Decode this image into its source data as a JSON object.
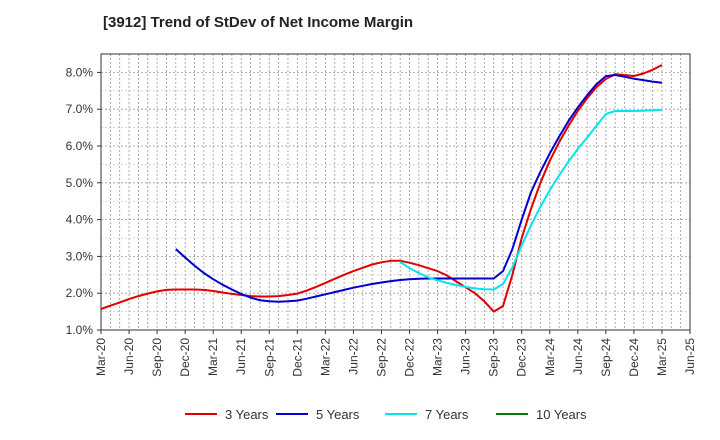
{
  "chart_data": {
    "type": "line",
    "title": "[3912]  Trend of StDev of Net Income Margin",
    "xlabel": "",
    "ylabel": "",
    "x_ticks": [
      "Mar-20",
      "Jun-20",
      "Sep-20",
      "Dec-20",
      "Mar-21",
      "Jun-21",
      "Sep-21",
      "Dec-21",
      "Mar-22",
      "Jun-22",
      "Sep-22",
      "Dec-22",
      "Mar-23",
      "Jun-23",
      "Sep-23",
      "Dec-23",
      "Mar-24",
      "Jun-24",
      "Sep-24",
      "Dec-24",
      "Mar-25",
      "Jun-25"
    ],
    "y_ticks": [
      "1.0%",
      "2.0%",
      "3.0%",
      "4.0%",
      "5.0%",
      "6.0%",
      "7.0%",
      "8.0%"
    ],
    "ylim": [
      1.0,
      8.5
    ],
    "grid": true,
    "legend_position": "bottom",
    "series": [
      {
        "name": "3 Years",
        "color": "#e00000",
        "points": [
          [
            "Mar-20",
            1.57
          ],
          [
            "Apr-20",
            1.66
          ],
          [
            "May-20",
            1.75
          ],
          [
            "Jun-20",
            1.84
          ],
          [
            "Jul-20",
            1.92
          ],
          [
            "Aug-20",
            1.99
          ],
          [
            "Sep-20",
            2.05
          ],
          [
            "Oct-20",
            2.09
          ],
          [
            "Nov-20",
            2.1
          ],
          [
            "Dec-20",
            2.1
          ],
          [
            "Jan-21",
            2.1
          ],
          [
            "Feb-21",
            2.09
          ],
          [
            "Mar-21",
            2.06
          ],
          [
            "Apr-21",
            2.02
          ],
          [
            "May-21",
            1.98
          ],
          [
            "Jun-21",
            1.95
          ],
          [
            "Jul-21",
            1.92
          ],
          [
            "Aug-21",
            1.91
          ],
          [
            "Sep-21",
            1.91
          ],
          [
            "Oct-21",
            1.92
          ],
          [
            "Nov-21",
            1.95
          ],
          [
            "Dec-21",
            1.99
          ],
          [
            "Jan-22",
            2.07
          ],
          [
            "Feb-22",
            2.17
          ],
          [
            "Mar-22",
            2.28
          ],
          [
            "Apr-22",
            2.39
          ],
          [
            "May-22",
            2.5
          ],
          [
            "Jun-22",
            2.6
          ],
          [
            "Jul-22",
            2.69
          ],
          [
            "Aug-22",
            2.78
          ],
          [
            "Sep-22",
            2.84
          ],
          [
            "Oct-22",
            2.88
          ],
          [
            "Nov-22",
            2.88
          ],
          [
            "Dec-22",
            2.83
          ],
          [
            "Jan-23",
            2.76
          ],
          [
            "Feb-23",
            2.68
          ],
          [
            "Mar-23",
            2.6
          ],
          [
            "Apr-23",
            2.48
          ],
          [
            "May-23",
            2.32
          ],
          [
            "Jun-23",
            2.16
          ],
          [
            "Jul-23",
            2.0
          ],
          [
            "Aug-23",
            1.78
          ],
          [
            "Sep-23",
            1.5
          ],
          [
            "Oct-23",
            1.65
          ],
          [
            "Nov-23",
            2.5
          ],
          [
            "Dec-23",
            3.5
          ],
          [
            "Jan-24",
            4.3
          ],
          [
            "Feb-24",
            5.0
          ],
          [
            "Mar-24",
            5.6
          ],
          [
            "Apr-24",
            6.1
          ],
          [
            "May-24",
            6.55
          ],
          [
            "Jun-24",
            6.95
          ],
          [
            "Jul-24",
            7.3
          ],
          [
            "Aug-24",
            7.6
          ],
          [
            "Sep-24",
            7.82
          ],
          [
            "Oct-24",
            7.95
          ],
          [
            "Nov-24",
            7.93
          ],
          [
            "Dec-24",
            7.9
          ],
          [
            "Jan-25",
            7.97
          ],
          [
            "Feb-25",
            8.07
          ],
          [
            "Mar-25",
            8.2
          ]
        ]
      },
      {
        "name": "5 Years",
        "color": "#0000cc",
        "points": [
          [
            "Nov-20",
            3.2
          ],
          [
            "Dec-20",
            2.97
          ],
          [
            "Jan-21",
            2.75
          ],
          [
            "Feb-21",
            2.55
          ],
          [
            "Mar-21",
            2.38
          ],
          [
            "Apr-21",
            2.23
          ],
          [
            "May-21",
            2.1
          ],
          [
            "Jun-21",
            1.98
          ],
          [
            "Jul-21",
            1.88
          ],
          [
            "Aug-21",
            1.81
          ],
          [
            "Sep-21",
            1.78
          ],
          [
            "Oct-21",
            1.77
          ],
          [
            "Nov-21",
            1.78
          ],
          [
            "Dec-21",
            1.8
          ],
          [
            "Jan-22",
            1.85
          ],
          [
            "Feb-22",
            1.91
          ],
          [
            "Mar-22",
            1.97
          ],
          [
            "Apr-22",
            2.03
          ],
          [
            "May-22",
            2.09
          ],
          [
            "Jun-22",
            2.15
          ],
          [
            "Jul-22",
            2.2
          ],
          [
            "Aug-22",
            2.25
          ],
          [
            "Sep-22",
            2.29
          ],
          [
            "Oct-22",
            2.33
          ],
          [
            "Nov-22",
            2.36
          ],
          [
            "Dec-22",
            2.38
          ],
          [
            "Jan-23",
            2.39
          ],
          [
            "Feb-23",
            2.4
          ],
          [
            "Mar-23",
            2.4
          ],
          [
            "Apr-23",
            2.4
          ],
          [
            "May-23",
            2.4
          ],
          [
            "Jun-23",
            2.4
          ],
          [
            "Jul-23",
            2.4
          ],
          [
            "Aug-23",
            2.4
          ],
          [
            "Sep-23",
            2.4
          ],
          [
            "Oct-23",
            2.6
          ],
          [
            "Nov-23",
            3.2
          ],
          [
            "Dec-23",
            4.0
          ],
          [
            "Jan-24",
            4.75
          ],
          [
            "Feb-24",
            5.3
          ],
          [
            "Mar-24",
            5.8
          ],
          [
            "Apr-24",
            6.25
          ],
          [
            "May-24",
            6.68
          ],
          [
            "Jun-24",
            7.05
          ],
          [
            "Jul-24",
            7.38
          ],
          [
            "Aug-24",
            7.68
          ],
          [
            "Sep-24",
            7.9
          ],
          [
            "Oct-24",
            7.93
          ],
          [
            "Nov-24",
            7.88
          ],
          [
            "Dec-24",
            7.83
          ],
          [
            "Jan-25",
            7.79
          ],
          [
            "Feb-25",
            7.75
          ],
          [
            "Mar-25",
            7.72
          ]
        ]
      },
      {
        "name": "7 Years",
        "color": "#00e5ee",
        "points": [
          [
            "Nov-22",
            2.85
          ],
          [
            "Dec-22",
            2.68
          ],
          [
            "Jan-23",
            2.55
          ],
          [
            "Feb-23",
            2.43
          ],
          [
            "Mar-23",
            2.35
          ],
          [
            "Apr-23",
            2.28
          ],
          [
            "May-23",
            2.22
          ],
          [
            "Jun-23",
            2.17
          ],
          [
            "Jul-23",
            2.13
          ],
          [
            "Aug-23",
            2.11
          ],
          [
            "Sep-23",
            2.1
          ],
          [
            "Oct-23",
            2.25
          ],
          [
            "Nov-23",
            2.7
          ],
          [
            "Dec-23",
            3.3
          ],
          [
            "Jan-24",
            3.85
          ],
          [
            "Feb-24",
            4.35
          ],
          [
            "Mar-24",
            4.8
          ],
          [
            "Apr-24",
            5.2
          ],
          [
            "May-24",
            5.58
          ],
          [
            "Jun-24",
            5.92
          ],
          [
            "Jul-24",
            6.23
          ],
          [
            "Aug-24",
            6.55
          ],
          [
            "Sep-24",
            6.87
          ],
          [
            "Oct-24",
            6.95
          ],
          [
            "Nov-24",
            6.95
          ],
          [
            "Dec-24",
            6.95
          ],
          [
            "Jan-25",
            6.96
          ],
          [
            "Feb-25",
            6.97
          ],
          [
            "Mar-25",
            6.98
          ]
        ]
      },
      {
        "name": "10 Years",
        "color": "#008000",
        "points": []
      }
    ]
  }
}
